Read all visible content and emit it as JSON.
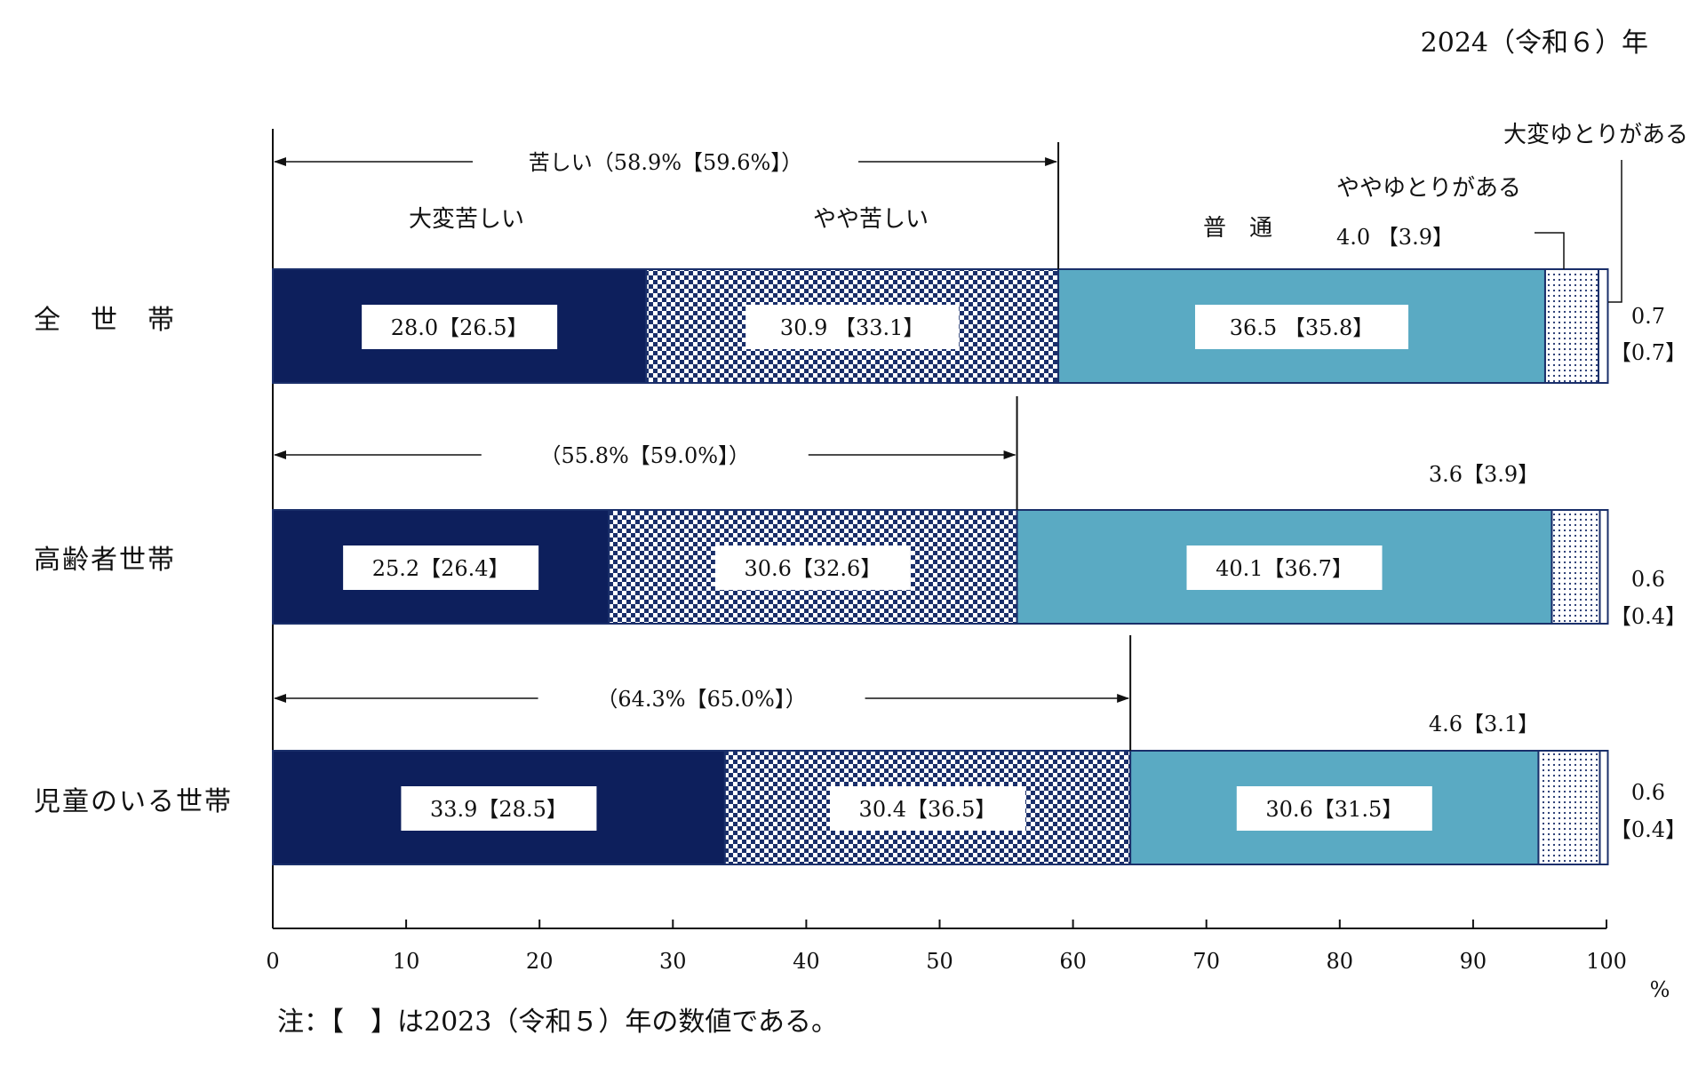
{
  "header": {
    "year_label": "2024（令和６）年"
  },
  "chart_data": {
    "type": "bar",
    "orientation": "horizontal",
    "stacked": true,
    "xlim": [
      0,
      100
    ],
    "x_unit": "%",
    "x_ticks": [
      "0",
      "10",
      "20",
      "30",
      "40",
      "50",
      "60",
      "70",
      "80",
      "90",
      "100"
    ],
    "categories": [
      "全　世　帯",
      "高齢者世帯",
      "児童のいる世帯"
    ],
    "series": [
      {
        "name": "大変苦しい",
        "values": [
          28.0,
          25.2,
          33.9
        ],
        "prev": [
          26.5,
          26.4,
          28.5
        ],
        "color": "#0d1f5c"
      },
      {
        "name": "やや苦しい",
        "values": [
          30.9,
          30.6,
          30.4
        ],
        "prev": [
          33.1,
          32.6,
          36.5
        ],
        "color": "#1a2f6a"
      },
      {
        "name": "普　通",
        "values": [
          36.5,
          40.1,
          30.6
        ],
        "prev": [
          35.8,
          36.7,
          31.5
        ],
        "color": "#5aaac3"
      },
      {
        "name": "ややゆとりがある",
        "values": [
          4.0,
          3.6,
          4.6
        ],
        "prev": [
          3.9,
          3.9,
          3.1
        ],
        "color": "#1a2f6a"
      },
      {
        "name": "大変ゆとりがある",
        "values": [
          0.7,
          0.6,
          0.6
        ],
        "prev": [
          0.7,
          0.4,
          0.4
        ],
        "color": "#ffffff"
      }
    ],
    "bar_labels": [
      [
        "28.0【26.5】",
        "30.9 【33.1】",
        "36.5 【35.8】"
      ],
      [
        "25.2【26.4】",
        "30.6【32.6】",
        "40.1【36.7】"
      ],
      [
        "33.9【28.5】",
        "30.4【36.5】",
        "30.6【31.5】"
      ]
    ],
    "yutori_labels": [
      "4.0 【3.9】",
      "3.6【3.9】",
      "4.6【3.1】"
    ],
    "taihen_yutori_labels": [
      [
        "0.7",
        "【0.7】"
      ],
      [
        "0.6",
        "【0.4】"
      ],
      [
        "0.6",
        "【0.4】"
      ]
    ],
    "kurushii_totals": [
      {
        "value": 58.9,
        "label": "苦しい（58.9%【59.6%】）"
      },
      {
        "value": 55.8,
        "label": "（55.8%【59.0%】）"
      },
      {
        "value": 64.3,
        "label": "（64.3%【65.0%】）"
      }
    ],
    "legend_labels": {
      "taihen_kurushii": "大変苦しい",
      "yaya_kurushii": "やや苦しい",
      "futsu": "普　通",
      "yaya_yutori": "ややゆとりがある",
      "taihen_yutori": "大変ゆとりがある"
    },
    "note": "注：【　】は2023（令和５）年の数値である。"
  }
}
